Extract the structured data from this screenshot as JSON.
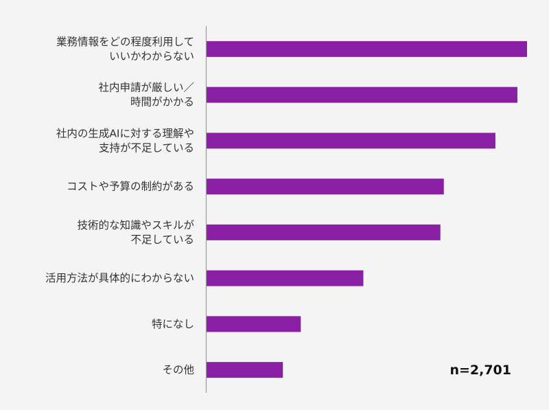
{
  "chart_data": {
    "type": "bar",
    "orientation": "horizontal",
    "categories": [
      [
        "業務情報をどの程度利用して",
        "いいかわからない"
      ],
      [
        "社内申請が厳しい／",
        "時間がかかる"
      ],
      [
        "社内の生成AIに対する理解や",
        "支持が不足している"
      ],
      [
        "コストや予算の制約がある"
      ],
      [
        "技術的な知識やスキルが",
        "不足している"
      ],
      [
        "活用方法が具体的にわからない"
      ],
      [
        "特になし"
      ],
      [
        "その他"
      ]
    ],
    "values": [
      46.6,
      45.2,
      42.0,
      34.5,
      34.0,
      22.8,
      13.7,
      11.1
    ],
    "xlim": [
      0,
      47
    ],
    "grid": false,
    "bar_color": "#8b1fa3",
    "annotation": "n=2,701"
  }
}
